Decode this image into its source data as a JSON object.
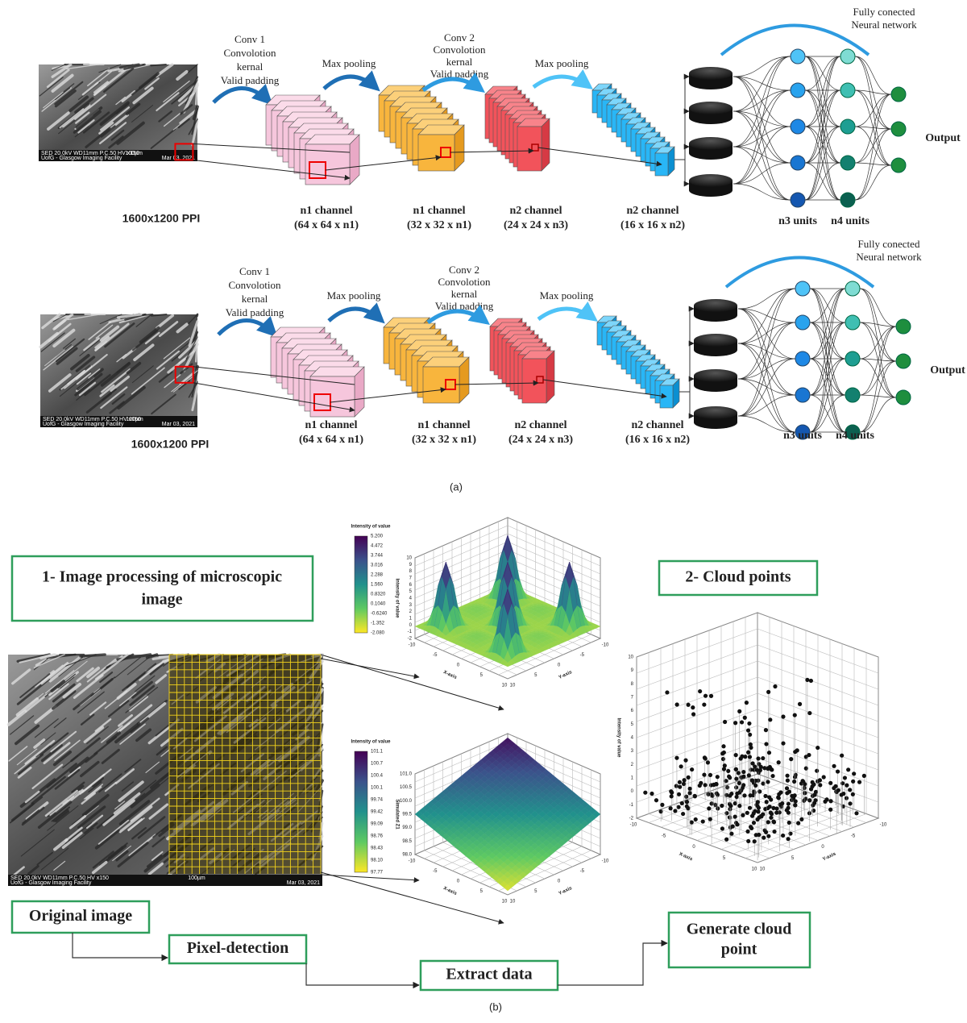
{
  "panel_a": {
    "label": "(a)",
    "rows": [
      {
        "sem_text": [
          "SED 20.0kV WD11mm P.C.50  HV  x150",
          "100µm",
          "UofG - Glasgow Imaging Facility",
          "Mar 03, 2021"
        ],
        "resolution": "1600x1200 PPI",
        "conv1": [
          "Conv 1",
          "Convolotion",
          "kernal",
          "Valid padding"
        ],
        "pool1": "Max pooling",
        "conv2": [
          "Conv 2",
          "Convolotion",
          "kernal",
          "Valid padding"
        ],
        "pool2": "Max pooling",
        "fc": [
          "Fully conected",
          "Neural network"
        ],
        "layers": [
          {
            "name": "n1 channel",
            "size": "(64 x 64 x n1)"
          },
          {
            "name": "n1 channel",
            "size": "(32 x 32 x n1)"
          },
          {
            "name": "n2 channel",
            "size": "(24 x 24 x n3)"
          },
          {
            "name": "n2 channel",
            "size": "(16 x 16 x n2)"
          }
        ],
        "units": [
          "n3 units",
          "n4 units"
        ],
        "output": "Output"
      },
      {
        "sem_text": [
          "SED 20.0kV WD11mm P.C.50  HV  x150",
          "100µm",
          "UofG - Glasgow Imaging Facility",
          "Mar 03, 2021"
        ],
        "resolution": "1600x1200 PPI",
        "conv1": [
          "Conv 1",
          "Convolotion",
          "kernal",
          "Valid padding"
        ],
        "pool1": "Max pooling",
        "conv2": [
          "Conv 2",
          "Convolotion",
          "kernal",
          "Valid padding"
        ],
        "pool2": "Max pooling",
        "fc": [
          "Fully conected",
          "Neural network"
        ],
        "layers": [
          {
            "name": "n1 channel",
            "size": "(64 x 64 x n1)"
          },
          {
            "name": "n1 channel",
            "size": "(32 x 32 x n1)"
          },
          {
            "name": "n2 channel",
            "size": "(24 x 24 x n3)"
          },
          {
            "name": "n2 channel",
            "size": "(16 x 16 x n2)"
          }
        ],
        "units": [
          "n3 units",
          "n4 units"
        ],
        "output": "Output"
      }
    ]
  },
  "panel_b": {
    "label": "(b)",
    "steps": {
      "image_processing": [
        "1- Image processing of microscopic",
        "image"
      ],
      "cloud_points": "2- Cloud points",
      "original": "Original image",
      "pixel_detection": "Pixel-detection",
      "extract": "Extract data",
      "generate": [
        "Generate cloud",
        "point"
      ]
    },
    "sem_text": [
      "SED  20.0kV WD11mm P.C.50   HV    x150",
      "100µm",
      "UofG - Glasgow Imaging Facility",
      "Mar 03, 2021"
    ],
    "plots": [
      {
        "colorbar_title": "Intensity of value",
        "colorbar_ticks": [
          "5.200",
          "4.472",
          "3.744",
          "3.016",
          "2.288",
          "1.560",
          "0.8320",
          "0.1040",
          "-0.6240",
          "-1.352",
          "-2.080"
        ],
        "z_label": "Intensity of value",
        "z_ticks": [
          "10",
          "9",
          "8",
          "7",
          "6",
          "5",
          "4",
          "3",
          "2",
          "1",
          "0",
          "-1",
          "-2"
        ],
        "x_label": "X-axis",
        "y_label": "Y-axis",
        "xy_ticks": [
          "-10",
          "-5",
          "0",
          "5",
          "10"
        ]
      },
      {
        "colorbar_title": "Intensity of value",
        "colorbar_ticks": [
          "101.1",
          "100.7",
          "100.4",
          "100.1",
          "99.74",
          "99.42",
          "99.09",
          "98.76",
          "98.43",
          "98.10",
          "97.77"
        ],
        "z_label": "Simulated Z1",
        "z_ticks": [
          "101.0",
          "100.5",
          "100.0",
          "99.5",
          "99.0",
          "98.5",
          "98.0"
        ],
        "x_label": "X-axis",
        "y_label": "Y-axis",
        "xy_ticks": [
          "-10",
          "-5",
          "0",
          "5",
          "10"
        ]
      },
      {
        "z_label": "Intensity of value",
        "z_ticks": [
          "10",
          "9",
          "8",
          "7",
          "6",
          "5",
          "4",
          "3",
          "2",
          "1",
          "0",
          "-1",
          "-2"
        ],
        "x_label": "X-axis",
        "y_label": "Y-axis",
        "xy_ticks": [
          "-10",
          "-5",
          "0",
          "5",
          "10"
        ]
      }
    ]
  }
}
